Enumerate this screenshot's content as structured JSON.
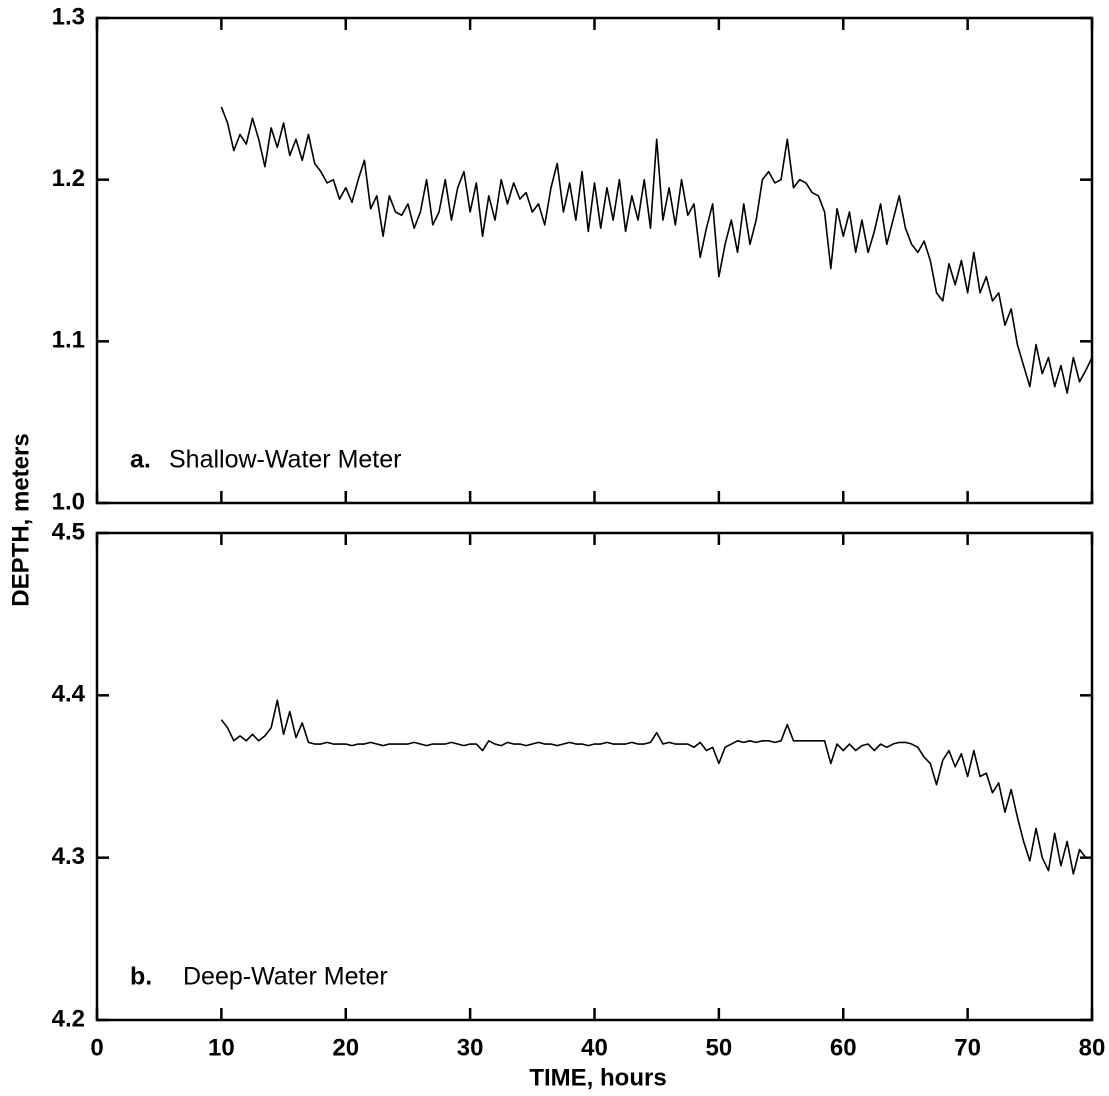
{
  "chart_data": [
    {
      "type": "line",
      "panel_label": "a.",
      "title": "Shallow-Water Meter",
      "ylabel": "DEPTH, meters",
      "color": "#000000",
      "xtick_labels": false,
      "xlim": [
        0,
        80
      ],
      "xticks": [
        0,
        10,
        20,
        30,
        40,
        50,
        60,
        70,
        80
      ],
      "ylim": [
        1.0,
        1.3
      ],
      "yticks": [
        {
          "value": 1.0,
          "label": "1.0"
        },
        1.1,
        1.2,
        1.3
      ],
      "x": [
        10,
        10.5,
        11,
        11.5,
        12,
        12.5,
        13,
        13.5,
        14,
        14.5,
        15,
        15.5,
        16,
        16.5,
        17,
        17.5,
        18,
        18.5,
        19,
        19.5,
        20,
        20.5,
        21,
        21.5,
        22,
        22.5,
        23,
        23.5,
        24,
        24.5,
        25,
        25.5,
        26,
        26.5,
        27,
        27.5,
        28,
        28.5,
        29,
        29.5,
        30,
        30.5,
        31,
        31.5,
        32,
        32.5,
        33,
        33.5,
        34,
        34.5,
        35,
        35.5,
        36,
        36.5,
        37,
        37.5,
        38,
        38.5,
        39,
        39.5,
        40,
        40.5,
        41,
        41.5,
        42,
        42.5,
        43,
        43.5,
        44,
        44.5,
        45,
        45.5,
        46,
        46.5,
        47,
        47.5,
        48,
        48.5,
        49,
        49.5,
        50,
        50.5,
        51,
        51.5,
        52,
        52.5,
        53,
        53.5,
        54,
        54.5,
        55,
        55.5,
        56,
        56.5,
        57,
        57.5,
        58,
        58.5,
        59,
        59.5,
        60,
        60.5,
        61,
        61.5,
        62,
        62.5,
        63,
        63.5,
        64,
        64.5,
        65,
        65.5,
        66,
        66.5,
        67,
        67.5,
        68,
        68.5,
        69,
        69.5,
        70,
        70.5,
        71,
        71.5,
        72,
        72.5,
        73,
        73.5,
        74,
        74.5,
        75,
        75.5,
        76,
        76.5,
        77,
        77.5,
        78,
        78.5,
        79,
        79.5,
        80
      ],
      "values": [
        1.245,
        1.235,
        1.218,
        1.228,
        1.222,
        1.238,
        1.225,
        1.208,
        1.232,
        1.22,
        1.235,
        1.215,
        1.225,
        1.212,
        1.228,
        1.21,
        1.205,
        1.198,
        1.2,
        1.188,
        1.195,
        1.186,
        1.2,
        1.212,
        1.182,
        1.19,
        1.165,
        1.19,
        1.18,
        1.178,
        1.185,
        1.17,
        1.18,
        1.2,
        1.172,
        1.18,
        1.2,
        1.175,
        1.195,
        1.205,
        1.18,
        1.198,
        1.165,
        1.19,
        1.175,
        1.2,
        1.185,
        1.198,
        1.188,
        1.192,
        1.18,
        1.185,
        1.172,
        1.195,
        1.21,
        1.18,
        1.198,
        1.175,
        1.205,
        1.168,
        1.198,
        1.17,
        1.195,
        1.175,
        1.2,
        1.168,
        1.19,
        1.175,
        1.2,
        1.17,
        1.225,
        1.175,
        1.195,
        1.172,
        1.2,
        1.178,
        1.185,
        1.152,
        1.17,
        1.185,
        1.14,
        1.16,
        1.175,
        1.155,
        1.185,
        1.16,
        1.175,
        1.2,
        1.205,
        1.198,
        1.2,
        1.225,
        1.195,
        1.2,
        1.198,
        1.192,
        1.19,
        1.18,
        1.145,
        1.182,
        1.165,
        1.18,
        1.155,
        1.175,
        1.155,
        1.168,
        1.185,
        1.16,
        1.175,
        1.19,
        1.17,
        1.16,
        1.155,
        1.162,
        1.15,
        1.13,
        1.125,
        1.148,
        1.135,
        1.15,
        1.13,
        1.155,
        1.13,
        1.14,
        1.125,
        1.13,
        1.11,
        1.12,
        1.098,
        1.085,
        1.072,
        1.098,
        1.08,
        1.09,
        1.072,
        1.085,
        1.068,
        1.09,
        1.075,
        1.082,
        1.09
      ]
    },
    {
      "type": "line",
      "panel_label": "b.",
      "title": "Deep-Water Meter",
      "xlabel": "TIME, hours",
      "color": "#000000",
      "xtick_labels": true,
      "xlim": [
        0,
        80
      ],
      "xticks": [
        0,
        10,
        20,
        30,
        40,
        50,
        60,
        70,
        80
      ],
      "ylim": [
        4.2,
        4.5
      ],
      "yticks": [
        4.2,
        4.3,
        4.4,
        4.5
      ],
      "x": [
        10,
        10.5,
        11,
        11.5,
        12,
        12.5,
        13,
        13.5,
        14,
        14.5,
        15,
        15.5,
        16,
        16.5,
        17,
        17.5,
        18,
        18.5,
        19,
        19.5,
        20,
        20.5,
        21,
        21.5,
        22,
        22.5,
        23,
        23.5,
        24,
        24.5,
        25,
        25.5,
        26,
        26.5,
        27,
        27.5,
        28,
        28.5,
        29,
        29.5,
        30,
        30.5,
        31,
        31.5,
        32,
        32.5,
        33,
        33.5,
        34,
        34.5,
        35,
        35.5,
        36,
        36.5,
        37,
        37.5,
        38,
        38.5,
        39,
        39.5,
        40,
        40.5,
        41,
        41.5,
        42,
        42.5,
        43,
        43.5,
        44,
        44.5,
        45,
        45.5,
        46,
        46.5,
        47,
        47.5,
        48,
        48.5,
        49,
        49.5,
        50,
        50.5,
        51,
        51.5,
        52,
        52.5,
        53,
        53.5,
        54,
        54.5,
        55,
        55.5,
        56,
        56.5,
        57,
        57.5,
        58,
        58.5,
        59,
        59.5,
        60,
        60.5,
        61,
        61.5,
        62,
        62.5,
        63,
        63.5,
        64,
        64.5,
        65,
        65.5,
        66,
        66.5,
        67,
        67.5,
        68,
        68.5,
        69,
        69.5,
        70,
        70.5,
        71,
        71.5,
        72,
        72.5,
        73,
        73.5,
        74,
        74.5,
        75,
        75.5,
        76,
        76.5,
        77,
        77.5,
        78,
        78.5,
        79,
        79.5,
        80
      ],
      "values": [
        4.385,
        4.38,
        4.372,
        4.375,
        4.372,
        4.376,
        4.372,
        4.375,
        4.38,
        4.397,
        4.376,
        4.39,
        4.374,
        4.383,
        4.371,
        4.37,
        4.37,
        4.371,
        4.37,
        4.37,
        4.37,
        4.369,
        4.37,
        4.37,
        4.371,
        4.37,
        4.369,
        4.37,
        4.37,
        4.37,
        4.37,
        4.371,
        4.37,
        4.369,
        4.37,
        4.37,
        4.37,
        4.371,
        4.37,
        4.369,
        4.37,
        4.37,
        4.366,
        4.372,
        4.37,
        4.369,
        4.371,
        4.37,
        4.37,
        4.369,
        4.37,
        4.371,
        4.37,
        4.37,
        4.369,
        4.37,
        4.371,
        4.37,
        4.37,
        4.369,
        4.37,
        4.37,
        4.371,
        4.37,
        4.37,
        4.37,
        4.371,
        4.37,
        4.37,
        4.371,
        4.377,
        4.37,
        4.371,
        4.37,
        4.37,
        4.37,
        4.368,
        4.371,
        4.366,
        4.368,
        4.358,
        4.368,
        4.37,
        4.372,
        4.371,
        4.372,
        4.371,
        4.372,
        4.372,
        4.371,
        4.372,
        4.382,
        4.372,
        4.372,
        4.372,
        4.372,
        4.372,
        4.372,
        4.358,
        4.37,
        4.366,
        4.37,
        4.366,
        4.369,
        4.37,
        4.366,
        4.37,
        4.368,
        4.37,
        4.371,
        4.371,
        4.37,
        4.368,
        4.362,
        4.358,
        4.345,
        4.36,
        4.366,
        4.356,
        4.364,
        4.35,
        4.366,
        4.35,
        4.352,
        4.34,
        4.346,
        4.328,
        4.342,
        4.325,
        4.31,
        4.298,
        4.318,
        4.3,
        4.292,
        4.315,
        4.295,
        4.31,
        4.29,
        4.305,
        4.3,
        4.3
      ]
    }
  ]
}
